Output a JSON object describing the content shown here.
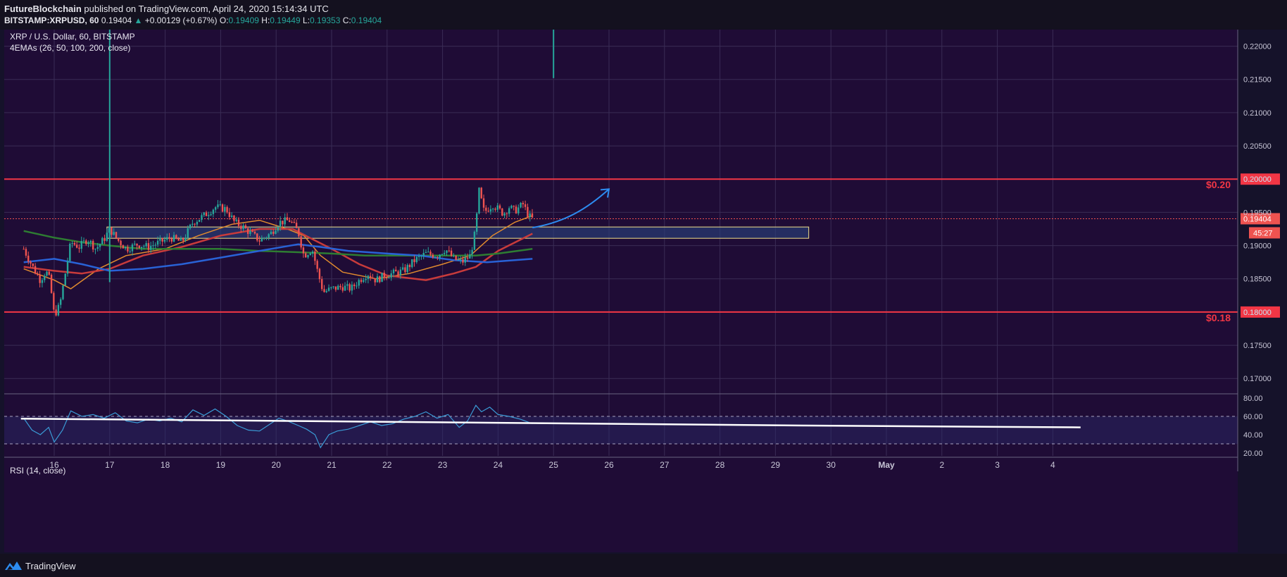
{
  "header": {
    "author": "FutureBlockchain",
    "published_text": "published on TradingView.com, April 24, 2020 15:14:34 UTC",
    "symbol": "BITSTAMP:XRPUSD, 60",
    "last": "0.19404",
    "change_arrow": "▲",
    "change": "+0.00129 (+0.67%)",
    "o_label": "O:",
    "o": "0.19409",
    "h_label": "H:",
    "h": "0.19449",
    "l_label": "L:",
    "l": "0.19353",
    "c_label": "C:",
    "c": "0.19404"
  },
  "footer": {
    "brand": "TradingView",
    "logo_icon": "tradingview-logo-icon"
  },
  "colors": {
    "background": "#1f0c36",
    "up": "#26a69a",
    "down": "#ef5350",
    "level_line": "#f23645",
    "zone_fill": "#2a3f7a",
    "zone_border": "#f0e08a",
    "arrow": "#2d8cf0",
    "ema26": "#e08a2e",
    "ema50": "#c83b3b",
    "ema100": "#2e7d32",
    "ema200": "#2962d6",
    "rsi": "#3a9bd6"
  },
  "chart_data": [
    {
      "type": "candlestick",
      "title": "XRP / U.S. Dollar, 60, BITSTAMP",
      "indicator_label": "4EMAs (26, 50, 100, 200, close)",
      "x_ticks": [
        "16",
        "17",
        "18",
        "19",
        "20",
        "21",
        "22",
        "23",
        "24",
        "25",
        "26",
        "27",
        "28",
        "29",
        "30",
        "May",
        "2",
        "3",
        "4"
      ],
      "y_ticks": [
        "0.17000",
        "0.17500",
        "0.18000",
        "0.18500",
        "0.19000",
        "0.19500",
        "0.20000",
        "0.20500",
        "0.21000",
        "0.21500",
        "0.22000"
      ],
      "ylim": [
        0.1678,
        0.2225
      ],
      "last_price": "0.19404",
      "countdown": "45:27",
      "horizontal_levels": [
        {
          "price": 0.2,
          "axis_label": "0.20000",
          "text": "$0.20"
        },
        {
          "price": 0.18,
          "axis_label": "0.18000",
          "text": "$0.18"
        }
      ],
      "zone": {
        "from_day": 16.95,
        "to_day": 29.6,
        "low": 0.1911,
        "high": 0.1928
      },
      "close_path": [
        [
          15.45,
          0.1895
        ],
        [
          15.55,
          0.1878
        ],
        [
          15.65,
          0.1862
        ],
        [
          15.75,
          0.1848
        ],
        [
          15.85,
          0.1862
        ],
        [
          15.92,
          0.1848
        ],
        [
          16.0,
          0.1795
        ],
        [
          16.1,
          0.181
        ],
        [
          16.22,
          0.1868
        ],
        [
          16.3,
          0.1905
        ],
        [
          16.45,
          0.1898
        ],
        [
          16.6,
          0.191
        ],
        [
          16.75,
          0.1895
        ],
        [
          16.9,
          0.191
        ],
        [
          17.0,
          0.1925
        ],
        [
          17.15,
          0.1908
        ],
        [
          17.3,
          0.1895
        ],
        [
          17.5,
          0.1902
        ],
        [
          17.7,
          0.1898
        ],
        [
          17.9,
          0.1905
        ],
        [
          18.1,
          0.1912
        ],
        [
          18.3,
          0.1905
        ],
        [
          18.5,
          0.1935
        ],
        [
          18.7,
          0.1945
        ],
        [
          18.9,
          0.1958
        ],
        [
          19.1,
          0.1955
        ],
        [
          19.25,
          0.1935
        ],
        [
          19.4,
          0.1928
        ],
        [
          19.55,
          0.1918
        ],
        [
          19.7,
          0.1908
        ],
        [
          19.9,
          0.1918
        ],
        [
          20.05,
          0.1935
        ],
        [
          20.25,
          0.1938
        ],
        [
          20.4,
          0.192
        ],
        [
          20.5,
          0.1885
        ],
        [
          20.65,
          0.1895
        ],
        [
          20.75,
          0.186
        ],
        [
          20.85,
          0.183
        ],
        [
          21.0,
          0.1835
        ],
        [
          21.2,
          0.1838
        ],
        [
          21.35,
          0.1835
        ],
        [
          21.5,
          0.1848
        ],
        [
          21.65,
          0.1858
        ],
        [
          21.8,
          0.1848
        ],
        [
          21.95,
          0.1855
        ],
        [
          22.1,
          0.1858
        ],
        [
          22.3,
          0.1862
        ],
        [
          22.5,
          0.1878
        ],
        [
          22.7,
          0.1888
        ],
        [
          22.9,
          0.1885
        ],
        [
          23.05,
          0.1895
        ],
        [
          23.2,
          0.188
        ],
        [
          23.35,
          0.1875
        ],
        [
          23.5,
          0.1885
        ],
        [
          23.6,
          0.1925
        ],
        [
          23.65,
          0.1985
        ],
        [
          23.75,
          0.195
        ],
        [
          23.9,
          0.1962
        ],
        [
          24.0,
          0.1955
        ],
        [
          24.1,
          0.1948
        ],
        [
          24.2,
          0.1958
        ],
        [
          24.3,
          0.1952
        ],
        [
          24.45,
          0.1962
        ],
        [
          24.55,
          0.1945
        ],
        [
          24.62,
          0.194
        ]
      ],
      "spikes": [
        {
          "day": 17.0,
          "low": 0.1845,
          "high": 0.2225
        },
        {
          "day": 25.0,
          "low": 0.2152,
          "high": 0.2225
        }
      ],
      "ema": [
        {
          "name": "EMA26",
          "points": [
            [
              15.45,
              0.1865
            ],
            [
              16.0,
              0.1848
            ],
            [
              16.3,
              0.1835
            ],
            [
              16.8,
              0.1865
            ],
            [
              17.3,
              0.1885
            ],
            [
              18.0,
              0.1895
            ],
            [
              18.6,
              0.1915
            ],
            [
              19.2,
              0.1932
            ],
            [
              19.7,
              0.1938
            ],
            [
              20.2,
              0.1925
            ],
            [
              20.5,
              0.1915
            ],
            [
              20.8,
              0.1885
            ],
            [
              21.2,
              0.186
            ],
            [
              21.8,
              0.185
            ],
            [
              22.4,
              0.1858
            ],
            [
              23.0,
              0.1872
            ],
            [
              23.5,
              0.1885
            ],
            [
              23.9,
              0.1915
            ],
            [
              24.3,
              0.1935
            ],
            [
              24.62,
              0.1945
            ]
          ]
        },
        {
          "name": "EMA50",
          "points": [
            [
              15.45,
              0.1868
            ],
            [
              16.0,
              0.1862
            ],
            [
              16.5,
              0.1858
            ],
            [
              17.0,
              0.1865
            ],
            [
              17.6,
              0.1885
            ],
            [
              18.3,
              0.1898
            ],
            [
              19.0,
              0.1915
            ],
            [
              19.7,
              0.1925
            ],
            [
              20.3,
              0.1925
            ],
            [
              20.6,
              0.1912
            ],
            [
              21.0,
              0.1895
            ],
            [
              21.5,
              0.1872
            ],
            [
              22.0,
              0.1855
            ],
            [
              22.7,
              0.1848
            ],
            [
              23.2,
              0.1858
            ],
            [
              23.6,
              0.1868
            ],
            [
              24.0,
              0.1892
            ],
            [
              24.62,
              0.1918
            ]
          ]
        },
        {
          "name": "EMA100",
          "points": [
            [
              15.45,
              0.1922
            ],
            [
              16.0,
              0.1912
            ],
            [
              16.5,
              0.1905
            ],
            [
              17.0,
              0.19
            ],
            [
              17.6,
              0.1895
            ],
            [
              18.3,
              0.1895
            ],
            [
              19.0,
              0.1895
            ],
            [
              19.7,
              0.1892
            ],
            [
              20.4,
              0.189
            ],
            [
              21.0,
              0.1888
            ],
            [
              21.6,
              0.1885
            ],
            [
              22.4,
              0.1885
            ],
            [
              23.0,
              0.1885
            ],
            [
              23.6,
              0.1885
            ],
            [
              24.0,
              0.1888
            ],
            [
              24.62,
              0.1895
            ]
          ]
        },
        {
          "name": "EMA200",
          "points": [
            [
              15.45,
              0.1875
            ],
            [
              16.0,
              0.188
            ],
            [
              16.5,
              0.1872
            ],
            [
              17.0,
              0.1862
            ],
            [
              17.6,
              0.1865
            ],
            [
              18.3,
              0.1872
            ],
            [
              19.0,
              0.1882
            ],
            [
              19.7,
              0.1892
            ],
            [
              20.4,
              0.1902
            ],
            [
              20.8,
              0.1898
            ],
            [
              21.3,
              0.1892
            ],
            [
              22.0,
              0.1888
            ],
            [
              22.6,
              0.1885
            ],
            [
              23.2,
              0.1878
            ],
            [
              23.8,
              0.1875
            ],
            [
              24.62,
              0.188
            ]
          ]
        }
      ],
      "projection": [
        [
          24.62,
          0.1927
        ],
        [
          25.2,
          0.1935
        ],
        [
          25.6,
          0.1955
        ],
        [
          26.0,
          0.1985
        ]
      ]
    },
    {
      "type": "line",
      "title": "RSI (14, close)",
      "y_ticks": [
        "20.00",
        "40.00",
        "60.00",
        "80.00"
      ],
      "ylim": [
        17,
        83
      ],
      "bands": [
        30,
        60
      ],
      "trendline": [
        [
          15.4,
          57.5
        ],
        [
          29.5,
          50
        ],
        [
          34.5,
          48
        ]
      ],
      "x": [
        15.45,
        15.6,
        15.75,
        15.9,
        16.0,
        16.15,
        16.3,
        16.5,
        16.7,
        16.9,
        17.1,
        17.3,
        17.5,
        17.7,
        17.9,
        18.1,
        18.3,
        18.5,
        18.7,
        18.9,
        19.1,
        19.3,
        19.5,
        19.7,
        19.9,
        20.05,
        20.2,
        20.4,
        20.55,
        20.7,
        20.8,
        20.95,
        21.1,
        21.3,
        21.5,
        21.7,
        21.9,
        22.1,
        22.3,
        22.5,
        22.7,
        22.9,
        23.1,
        23.3,
        23.45,
        23.6,
        23.7,
        23.85,
        24.0,
        24.2,
        24.4,
        24.62
      ],
      "values": [
        58,
        45,
        40,
        48,
        32,
        45,
        66,
        60,
        62,
        58,
        64,
        55,
        53,
        57,
        55,
        58,
        54,
        67,
        61,
        68,
        60,
        50,
        45,
        44,
        52,
        58,
        55,
        50,
        46,
        40,
        26,
        40,
        44,
        46,
        50,
        54,
        50,
        52,
        57,
        60,
        65,
        58,
        62,
        48,
        55,
        72,
        65,
        70,
        62,
        60,
        57,
        52
      ]
    }
  ]
}
